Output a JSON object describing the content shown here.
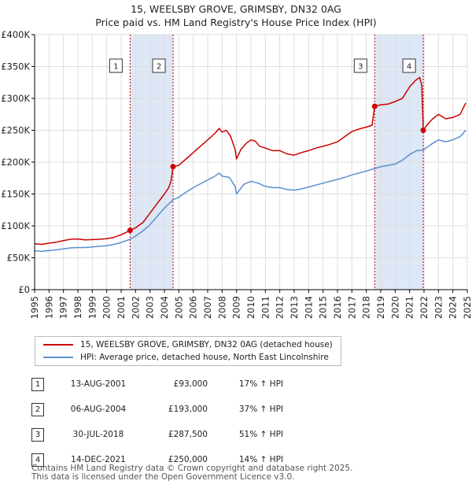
{
  "title": {
    "line1": "15, WEELSBY GROVE, GRIMSBY, DN32 0AG",
    "line2": "Price paid vs. HM Land Registry's House Price Index (HPI)"
  },
  "colors": {
    "property": "#cc0000",
    "hpi": "#5b8fcf",
    "shade": "#dde7f5",
    "grid": "#dddddd",
    "marker_line": "#cc0000"
  },
  "chart_data": {
    "type": "line",
    "title": "15, WEELSBY GROVE, GRIMSBY, DN32 0AG — Price paid vs. HM Land Registry's House Price Index (HPI)",
    "xlabel": "",
    "ylabel": "",
    "xlim": [
      1995.0,
      2025.0
    ],
    "ylim": [
      0,
      400000
    ],
    "x_ticks": [
      "1995",
      "1996",
      "1997",
      "1998",
      "1999",
      "2000",
      "2001",
      "2002",
      "2003",
      "2004",
      "2005",
      "2006",
      "2007",
      "2008",
      "2009",
      "2010",
      "2011",
      "2012",
      "2013",
      "2014",
      "2015",
      "2016",
      "2017",
      "2018",
      "2019",
      "2020",
      "2021",
      "2022",
      "2023",
      "2024",
      "2025"
    ],
    "y_ticks": [
      {
        "value": 0,
        "label": "£0"
      },
      {
        "value": 50000,
        "label": "£50K"
      },
      {
        "value": 100000,
        "label": "£100K"
      },
      {
        "value": 150000,
        "label": "£150K"
      },
      {
        "value": 200000,
        "label": "£200K"
      },
      {
        "value": 250000,
        "label": "£250K"
      },
      {
        "value": 300000,
        "label": "£300K"
      },
      {
        "value": 350000,
        "label": "£350K"
      },
      {
        "value": 400000,
        "label": "£400K"
      }
    ],
    "grid": true,
    "series": [
      {
        "name": "15, WEELSBY GROVE, GRIMSBY, DN32 0AG (detached house)",
        "color": "#cc0000",
        "points": [
          [
            1995.0,
            72000
          ],
          [
            1995.5,
            71000
          ],
          [
            1996.0,
            73000
          ],
          [
            1996.5,
            74500
          ],
          [
            1997.0,
            77000
          ],
          [
            1997.5,
            79000
          ],
          [
            1998.0,
            79500
          ],
          [
            1998.5,
            78000
          ],
          [
            1999.0,
            78500
          ],
          [
            1999.5,
            79000
          ],
          [
            2000.0,
            80000
          ],
          [
            2000.5,
            82000
          ],
          [
            2001.0,
            86000
          ],
          [
            2001.62,
            93000
          ],
          [
            2002.0,
            97000
          ],
          [
            2002.5,
            105000
          ],
          [
            2003.0,
            120000
          ],
          [
            2003.5,
            135000
          ],
          [
            2004.0,
            150000
          ],
          [
            2004.3,
            160000
          ],
          [
            2004.45,
            170000
          ],
          [
            2004.6,
            193000
          ],
          [
            2005.0,
            195000
          ],
          [
            2005.5,
            205000
          ],
          [
            2006.0,
            215000
          ],
          [
            2006.5,
            225000
          ],
          [
            2007.0,
            235000
          ],
          [
            2007.5,
            245000
          ],
          [
            2007.8,
            253000
          ],
          [
            2008.0,
            247000
          ],
          [
            2008.3,
            250000
          ],
          [
            2008.6,
            240000
          ],
          [
            2008.9,
            220000
          ],
          [
            2009.0,
            205000
          ],
          [
            2009.3,
            220000
          ],
          [
            2009.7,
            230000
          ],
          [
            2010.0,
            235000
          ],
          [
            2010.3,
            233000
          ],
          [
            2010.6,
            225000
          ],
          [
            2011.0,
            222000
          ],
          [
            2011.5,
            218000
          ],
          [
            2012.0,
            218000
          ],
          [
            2012.5,
            213000
          ],
          [
            2013.0,
            211000
          ],
          [
            2013.5,
            215000
          ],
          [
            2014.0,
            218000
          ],
          [
            2014.5,
            222000
          ],
          [
            2015.0,
            225000
          ],
          [
            2015.5,
            228000
          ],
          [
            2016.0,
            232000
          ],
          [
            2016.5,
            240000
          ],
          [
            2017.0,
            248000
          ],
          [
            2017.5,
            252000
          ],
          [
            2018.0,
            255000
          ],
          [
            2018.4,
            258000
          ],
          [
            2018.58,
            287500
          ],
          [
            2019.0,
            290000
          ],
          [
            2019.5,
            291000
          ],
          [
            2020.0,
            295000
          ],
          [
            2020.5,
            300000
          ],
          [
            2021.0,
            318000
          ],
          [
            2021.4,
            328000
          ],
          [
            2021.7,
            333000
          ],
          [
            2021.85,
            320000
          ],
          [
            2021.95,
            250000
          ],
          [
            2022.2,
            258000
          ],
          [
            2022.6,
            268000
          ],
          [
            2023.0,
            275000
          ],
          [
            2023.5,
            268000
          ],
          [
            2024.0,
            270000
          ],
          [
            2024.5,
            275000
          ],
          [
            2024.9,
            293000
          ]
        ]
      },
      {
        "name": "HPI: Average price, detached house, North East Lincolnshire",
        "color": "#5b8fcf",
        "points": [
          [
            1995.0,
            61000
          ],
          [
            1995.5,
            60000
          ],
          [
            1996.0,
            61500
          ],
          [
            1996.5,
            62500
          ],
          [
            1997.0,
            64000
          ],
          [
            1997.5,
            65500
          ],
          [
            1998.0,
            66000
          ],
          [
            1998.5,
            66000
          ],
          [
            1999.0,
            67000
          ],
          [
            1999.5,
            68000
          ],
          [
            2000.0,
            69000
          ],
          [
            2000.5,
            71000
          ],
          [
            2001.0,
            74000
          ],
          [
            2001.62,
            79000
          ],
          [
            2002.0,
            84000
          ],
          [
            2002.5,
            92000
          ],
          [
            2003.0,
            102000
          ],
          [
            2003.5,
            115000
          ],
          [
            2004.0,
            128000
          ],
          [
            2004.6,
            141000
          ],
          [
            2005.0,
            145000
          ],
          [
            2005.5,
            153000
          ],
          [
            2006.0,
            160000
          ],
          [
            2006.5,
            166000
          ],
          [
            2007.0,
            172000
          ],
          [
            2007.5,
            178000
          ],
          [
            2007.8,
            183000
          ],
          [
            2008.0,
            178000
          ],
          [
            2008.5,
            176000
          ],
          [
            2008.9,
            162000
          ],
          [
            2009.0,
            150000
          ],
          [
            2009.5,
            165000
          ],
          [
            2010.0,
            170000
          ],
          [
            2010.5,
            167000
          ],
          [
            2011.0,
            162000
          ],
          [
            2011.5,
            160000
          ],
          [
            2012.0,
            160000
          ],
          [
            2012.5,
            157000
          ],
          [
            2013.0,
            156000
          ],
          [
            2013.5,
            158000
          ],
          [
            2014.0,
            161000
          ],
          [
            2014.5,
            164000
          ],
          [
            2015.0,
            167000
          ],
          [
            2015.5,
            170000
          ],
          [
            2016.0,
            173000
          ],
          [
            2016.5,
            176000
          ],
          [
            2017.0,
            180000
          ],
          [
            2017.5,
            183000
          ],
          [
            2018.0,
            186000
          ],
          [
            2018.58,
            190000
          ],
          [
            2019.0,
            193000
          ],
          [
            2019.5,
            195000
          ],
          [
            2020.0,
            197000
          ],
          [
            2020.5,
            203000
          ],
          [
            2021.0,
            212000
          ],
          [
            2021.5,
            218000
          ],
          [
            2021.95,
            219000
          ],
          [
            2022.5,
            228000
          ],
          [
            2023.0,
            235000
          ],
          [
            2023.5,
            232000
          ],
          [
            2024.0,
            235000
          ],
          [
            2024.5,
            240000
          ],
          [
            2024.9,
            250000
          ]
        ]
      }
    ],
    "sales": [
      {
        "id": "1",
        "x": 2001.62,
        "price": 93000
      },
      {
        "id": "2",
        "x": 2004.6,
        "price": 193000
      },
      {
        "id": "3",
        "x": 2018.58,
        "price": 287500
      },
      {
        "id": "4",
        "x": 2021.95,
        "price": 250000
      }
    ],
    "shaded_ranges": [
      [
        2001.62,
        2004.6
      ],
      [
        2018.58,
        2021.95
      ]
    ]
  },
  "legend": {
    "property_label": "15, WEELSBY GROVE, GRIMSBY, DN32 0AG (detached house)",
    "hpi_label": "HPI: Average price, detached house, North East Lincolnshire"
  },
  "transactions": [
    {
      "num": "1",
      "date": "13-AUG-2001",
      "price": "£93,000",
      "hpi": "17% ↑ HPI"
    },
    {
      "num": "2",
      "date": "06-AUG-2004",
      "price": "£193,000",
      "hpi": "37% ↑ HPI"
    },
    {
      "num": "3",
      "date": "30-JUL-2018",
      "price": "£287,500",
      "hpi": "51% ↑ HPI"
    },
    {
      "num": "4",
      "date": "14-DEC-2021",
      "price": "£250,000",
      "hpi": "14% ↑ HPI"
    }
  ],
  "footer": {
    "line1": "Contains HM Land Registry data © Crown copyright and database right 2025.",
    "line2": "This data is licensed under the Open Government Licence v3.0."
  }
}
